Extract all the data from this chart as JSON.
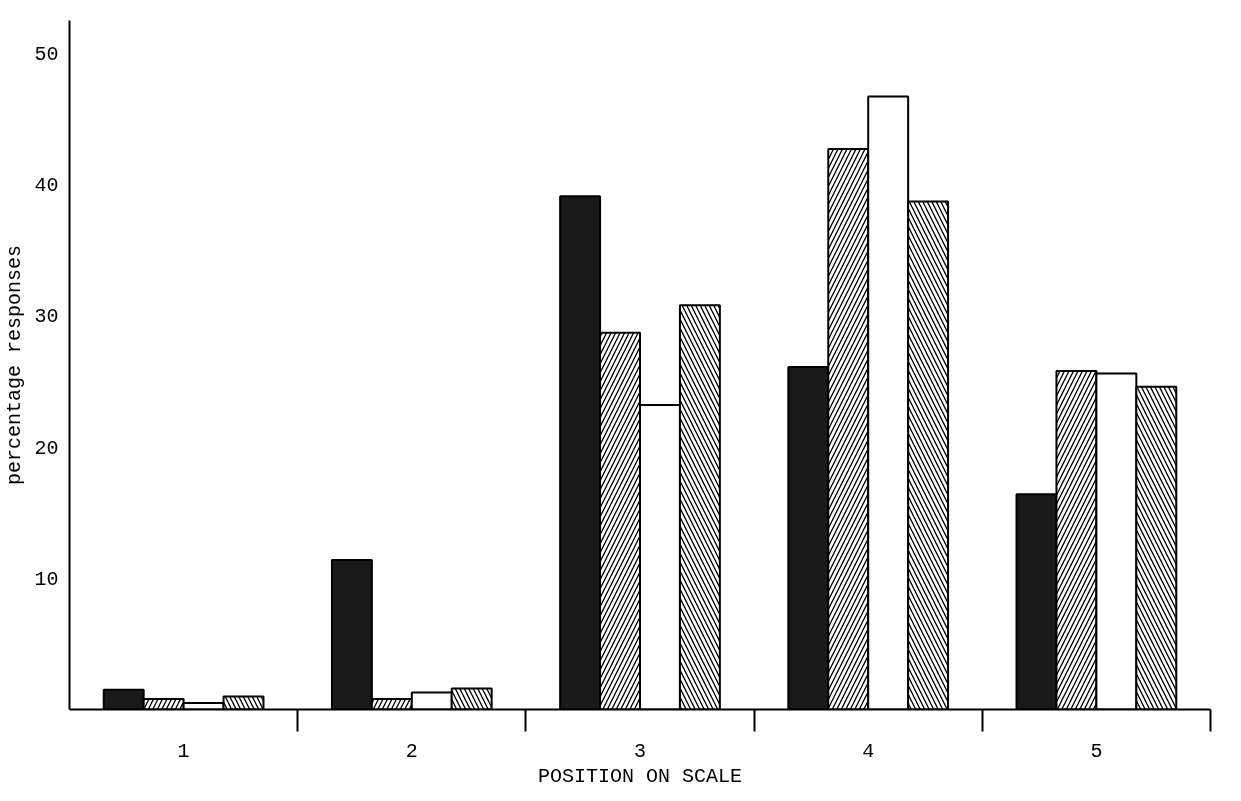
{
  "chart_data": {
    "type": "bar",
    "xlabel": "POSITION ON SCALE",
    "ylabel": "percentage responses",
    "categories": [
      "1",
      "2",
      "3",
      "4",
      "5"
    ],
    "series": [
      {
        "color": "#1a1a1a",
        "values": [
          1.5,
          11.4,
          39.1,
          26.1,
          16.4
        ]
      },
      {
        "color": "#ffffff",
        "values": [
          0.8,
          0.8,
          28.7,
          42.7,
          25.8
        ]
      },
      {
        "color": "#ffffff",
        "values": [
          0.5,
          1.3,
          23.2,
          46.7,
          25.6
        ]
      },
      {
        "color": "#ffffff",
        "values": [
          1.0,
          1.6,
          30.8,
          38.7,
          24.6
        ]
      }
    ],
    "ylim": [
      0,
      52.5
    ],
    "yticks": [
      10,
      20,
      30,
      40,
      50
    ],
    "grid": false
  }
}
